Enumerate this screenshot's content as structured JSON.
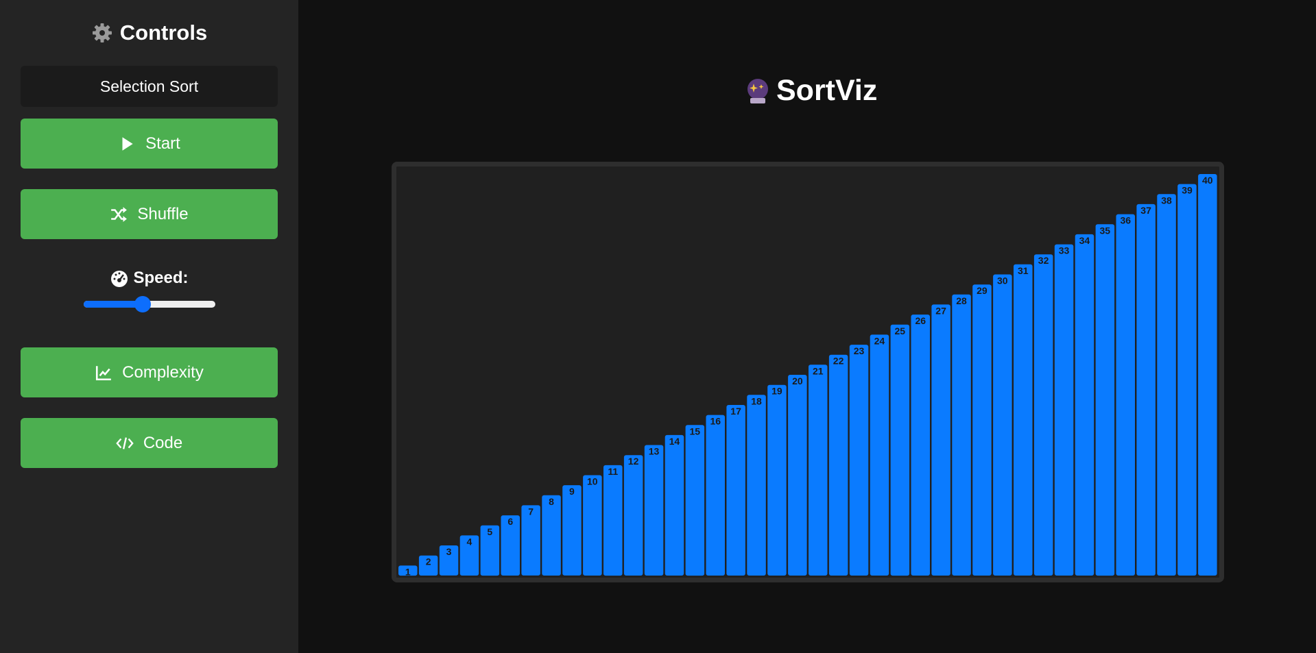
{
  "sidebar": {
    "title": "Controls",
    "algorithm": "Selection Sort",
    "start_label": "Start",
    "shuffle_label": "Shuffle",
    "speed_label": "Speed:",
    "speed_value": 0.45,
    "complexity_label": "Complexity",
    "code_label": "Code"
  },
  "main": {
    "title": "SortViz"
  },
  "colors": {
    "button": "#4caf50",
    "bar": "#0a7bff",
    "accent": "#0d6efd"
  },
  "chart_data": {
    "type": "bar",
    "categories": [
      "1",
      "2",
      "3",
      "4",
      "5",
      "6",
      "7",
      "8",
      "9",
      "10",
      "11",
      "12",
      "13",
      "14",
      "15",
      "16",
      "17",
      "18",
      "19",
      "20",
      "21",
      "22",
      "23",
      "24",
      "25",
      "26",
      "27",
      "28",
      "29",
      "30",
      "31",
      "32",
      "33",
      "34",
      "35",
      "36",
      "37",
      "38",
      "39",
      "40"
    ],
    "values": [
      1,
      2,
      3,
      4,
      5,
      6,
      7,
      8,
      9,
      10,
      11,
      12,
      13,
      14,
      15,
      16,
      17,
      18,
      19,
      20,
      21,
      22,
      23,
      24,
      25,
      26,
      27,
      28,
      29,
      30,
      31,
      32,
      33,
      34,
      35,
      36,
      37,
      38,
      39,
      40
    ],
    "title": "",
    "xlabel": "",
    "ylabel": "",
    "ylim": [
      0,
      40
    ],
    "grid": false
  }
}
